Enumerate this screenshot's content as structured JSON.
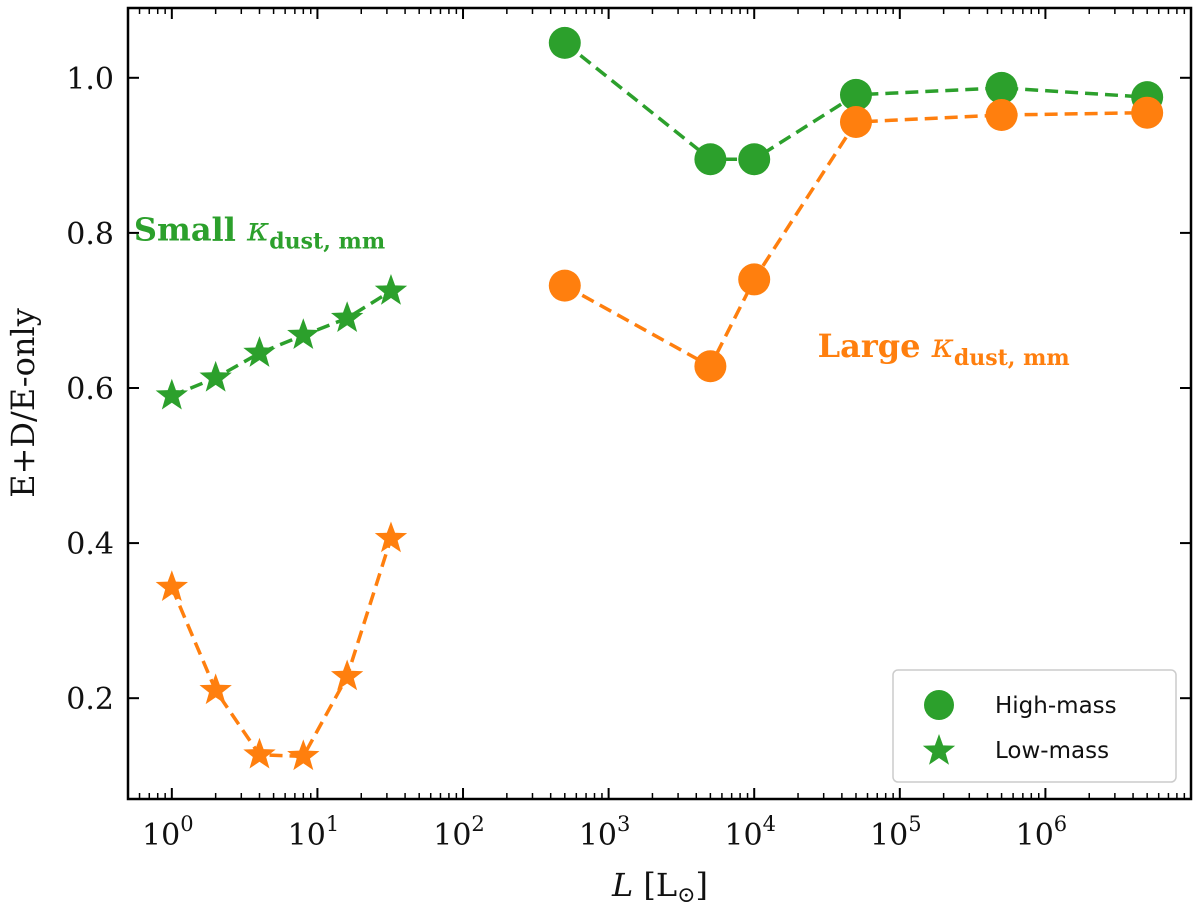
{
  "chart_data": {
    "type": "scatter",
    "xscale": "log",
    "xlim": [
      0.5,
      10000000
    ],
    "ylim": [
      0.07,
      1.09
    ],
    "xlabel": {
      "italic": "L",
      "rest": " [L",
      "sub": "⊙",
      "close": "]"
    },
    "ylabel": "E+D/E-only",
    "x_ticks": [
      {
        "value": 1,
        "base": "10",
        "exp": "0"
      },
      {
        "value": 10,
        "base": "10",
        "exp": "1"
      },
      {
        "value": 100,
        "base": "10",
        "exp": "2"
      },
      {
        "value": 1000,
        "base": "10",
        "exp": "3"
      },
      {
        "value": 10000,
        "base": "10",
        "exp": "4"
      },
      {
        "value": 100000,
        "base": "10",
        "exp": "5"
      },
      {
        "value": 1000000,
        "base": "10",
        "exp": "6"
      }
    ],
    "y_ticks": [
      {
        "value": 0.2,
        "label": "0.2"
      },
      {
        "value": 0.4,
        "label": "0.4"
      },
      {
        "value": 0.6,
        "label": "0.6"
      },
      {
        "value": 0.8,
        "label": "0.8"
      },
      {
        "value": 1.0,
        "label": "1.0"
      }
    ],
    "grid": false,
    "legend_position": "bottom-right",
    "legend": [
      {
        "label": "High-mass",
        "marker": "circle"
      },
      {
        "label": "Low-mass",
        "marker": "star"
      }
    ],
    "colors": {
      "green": "#2ca02c",
      "orange": "#ff7f0e"
    },
    "series": [
      {
        "color": "green",
        "marker": "circle",
        "x": [
          500,
          5000,
          10000,
          50000,
          500000,
          5000000
        ],
        "y": [
          1.045,
          0.895,
          0.895,
          0.978,
          0.987,
          0.975
        ]
      },
      {
        "color": "orange",
        "marker": "circle",
        "x": [
          500,
          5000,
          10000,
          50000,
          500000,
          5000000
        ],
        "y": [
          0.732,
          0.628,
          0.74,
          0.943,
          0.952,
          0.955
        ]
      },
      {
        "color": "green",
        "marker": "star",
        "x": [
          1,
          2,
          4,
          8,
          16,
          32
        ],
        "y": [
          0.59,
          0.613,
          0.645,
          0.668,
          0.69,
          0.725
        ]
      },
      {
        "color": "orange",
        "marker": "star",
        "x": [
          1,
          2,
          4,
          8,
          16,
          32
        ],
        "y": [
          0.343,
          0.21,
          0.127,
          0.125,
          0.228,
          0.406
        ]
      }
    ],
    "annotations": [
      {
        "color": "green",
        "word": "Small",
        "symbol": "κ",
        "sub": "dust, mm",
        "x": 4,
        "y": 0.79
      },
      {
        "color": "orange",
        "word": "Large",
        "symbol": "κ",
        "sub": "dust, mm",
        "x": 200000,
        "y": 0.64
      }
    ]
  }
}
